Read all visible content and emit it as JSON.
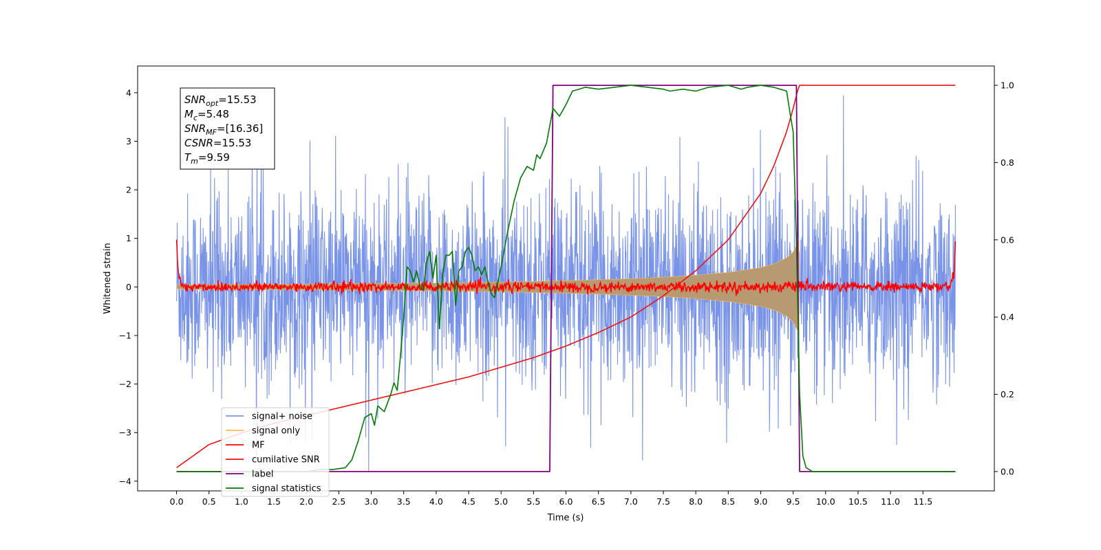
{
  "chart_data": {
    "type": "line",
    "title": "",
    "xlabel": "Time (s)",
    "ylabel": "Whitened strain",
    "xlim": [
      -0.6,
      12.6
    ],
    "ylim": [
      -4.2,
      4.55
    ],
    "ylim_right": [
      -0.05,
      1.05
    ],
    "xticks": [
      0.0,
      0.5,
      1.0,
      1.5,
      2.0,
      2.5,
      3.0,
      3.5,
      4.0,
      4.5,
      5.0,
      5.5,
      6.0,
      6.5,
      7.0,
      7.5,
      8.0,
      8.5,
      9.0,
      9.5,
      10.0,
      10.5,
      11.0,
      11.5
    ],
    "xtick_labels": [
      "0.0",
      "0.5",
      "1.0",
      "1.5",
      "2.0",
      "2.5",
      "3.0",
      "3.5",
      "4.0",
      "4.5",
      "5.0",
      "5.5",
      "6.0",
      "6.5",
      "7.0",
      "7.5",
      "8.0",
      "8.5",
      "9.0",
      "9.5",
      "10.0",
      "10.5",
      "11.0",
      "11.5"
    ],
    "yticks": [
      -4,
      -3,
      -2,
      -1,
      0,
      1,
      2,
      3,
      4
    ],
    "ytick_labels": [
      "−4",
      "−3",
      "−2",
      "−1",
      "0",
      "1",
      "2",
      "3",
      "4"
    ],
    "yticks_right": [
      0.0,
      0.2,
      0.4,
      0.6,
      0.8,
      1.0
    ],
    "ytick_labels_right": [
      "0.0",
      "0.2",
      "0.4",
      "0.6",
      "0.8",
      "1.0"
    ],
    "grid": false,
    "legend_position": "lower-left",
    "noise": {
      "t_start": 0.0,
      "t_end": 12.0,
      "typical_range": [
        -2.4,
        2.4
      ],
      "peak_range": [
        -3.8,
        4.2
      ]
    },
    "signal_envelope": {
      "t": [
        0.0,
        1.0,
        2.0,
        3.0,
        4.0,
        5.0,
        6.0,
        7.0,
        7.5,
        8.0,
        8.5,
        9.0,
        9.2,
        9.4,
        9.5,
        9.55,
        9.59
      ],
      "amp": [
        0.04,
        0.05,
        0.06,
        0.07,
        0.08,
        0.1,
        0.13,
        0.17,
        0.2,
        0.24,
        0.3,
        0.4,
        0.47,
        0.6,
        0.72,
        0.85,
        1.0
      ]
    },
    "cumulative_snr": {
      "axis": "right",
      "t": [
        0.0,
        0.5,
        1.0,
        1.5,
        2.0,
        2.5,
        3.0,
        3.5,
        4.0,
        4.5,
        5.0,
        5.5,
        6.0,
        6.5,
        7.0,
        7.5,
        8.0,
        8.5,
        9.0,
        9.2,
        9.4,
        9.5,
        9.59,
        9.6,
        12.0
      ],
      "values": [
        0.01,
        0.07,
        0.1,
        0.125,
        0.145,
        0.165,
        0.185,
        0.205,
        0.225,
        0.245,
        0.27,
        0.295,
        0.325,
        0.36,
        0.4,
        0.455,
        0.52,
        0.6,
        0.72,
        0.79,
        0.88,
        0.94,
        1.0,
        1.0,
        1.0
      ]
    },
    "matched_filter": {
      "t_start": 0.0,
      "t_end": 12.0,
      "baseline": 0.0,
      "jitter": 0.06,
      "edge_peaks": [
        [
          0.0,
          1.0
        ],
        [
          12.0,
          0.92
        ]
      ]
    },
    "label": {
      "axis": "right",
      "t": [
        0.0,
        5.75,
        5.8,
        9.55,
        9.6,
        12.0
      ],
      "values": [
        0.0,
        0.0,
        1.0,
        1.0,
        0.0,
        0.0
      ]
    },
    "signal_statistics": {
      "axis": "right",
      "t": [
        0.0,
        2.0,
        2.2,
        2.4,
        2.6,
        2.7,
        2.8,
        2.9,
        3.0,
        3.05,
        3.1,
        3.2,
        3.3,
        3.35,
        3.4,
        3.45,
        3.5,
        3.55,
        3.6,
        3.65,
        3.7,
        3.75,
        3.8,
        3.85,
        3.9,
        3.95,
        4.0,
        4.05,
        4.1,
        4.15,
        4.2,
        4.25,
        4.3,
        4.35,
        4.4,
        4.45,
        4.5,
        4.55,
        4.6,
        4.65,
        4.7,
        4.75,
        4.8,
        4.85,
        4.9,
        5.0,
        5.1,
        5.2,
        5.3,
        5.4,
        5.5,
        5.55,
        5.6,
        5.7,
        5.8,
        5.9,
        6.0,
        6.1,
        6.2,
        6.3,
        6.5,
        7.0,
        7.5,
        7.6,
        7.8,
        8.0,
        8.2,
        8.5,
        8.7,
        8.8,
        9.0,
        9.2,
        9.3,
        9.4,
        9.45,
        9.5,
        9.55,
        9.6,
        9.65,
        9.7,
        9.8,
        12.0
      ],
      "values": [
        0.0,
        0.0,
        0.005,
        0.005,
        0.01,
        0.03,
        0.08,
        0.14,
        0.15,
        0.12,
        0.17,
        0.155,
        0.2,
        0.23,
        0.21,
        0.3,
        0.4,
        0.53,
        0.52,
        0.49,
        0.52,
        0.48,
        0.47,
        0.54,
        0.57,
        0.5,
        0.56,
        0.37,
        0.51,
        0.56,
        0.56,
        0.57,
        0.43,
        0.52,
        0.53,
        0.57,
        0.58,
        0.56,
        0.52,
        0.53,
        0.51,
        0.53,
        0.49,
        0.46,
        0.45,
        0.53,
        0.62,
        0.7,
        0.76,
        0.79,
        0.78,
        0.82,
        0.81,
        0.85,
        0.94,
        0.92,
        0.95,
        0.985,
        0.99,
        0.995,
        0.99,
        1.0,
        0.99,
        0.985,
        0.99,
        0.985,
        0.995,
        1.0,
        0.99,
        0.995,
        1.0,
        0.995,
        0.99,
        0.985,
        0.93,
        0.88,
        0.6,
        0.2,
        0.04,
        0.01,
        0.0,
        0.0
      ]
    },
    "legend": [
      "signal+ noise",
      "signal only",
      "MF",
      "cumilative SNR",
      "label",
      "signal statistics"
    ],
    "colors": {
      "signal_noise": "#7893e8",
      "signal_only": "#ffbb55",
      "signal_fill": "#b89a72",
      "mf": "#ff0000",
      "cumulative_snr": "#ee1111",
      "label": "#800080",
      "signal_statistics": "#007a00"
    },
    "info_box": [
      {
        "label": "SNR",
        "sub": "opt",
        "value": "=15.53"
      },
      {
        "label": "M",
        "sub": "c",
        "value": "=5.48"
      },
      {
        "label": "SNR",
        "sub": "MF",
        "value": "=[16.36]"
      },
      {
        "label": "CSNR",
        "sub": "",
        "value": "=15.53"
      },
      {
        "label": "T",
        "sub": "m",
        "value": "=9.59"
      }
    ]
  }
}
